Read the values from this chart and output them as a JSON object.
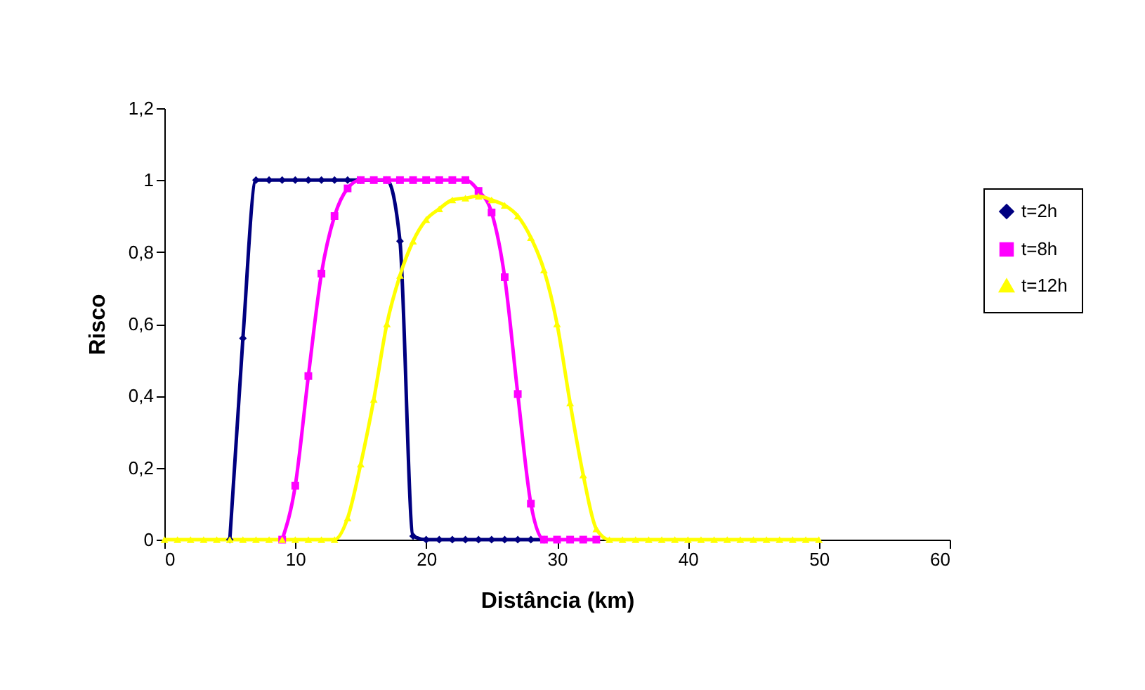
{
  "chart_data": {
    "type": "line",
    "xlabel": "Distância (km)",
    "ylabel": "Risco",
    "x": [
      0,
      1,
      2,
      3,
      4,
      5,
      6,
      7,
      8,
      9,
      10,
      11,
      12,
      13,
      14,
      15,
      16,
      17,
      18,
      19,
      20,
      21,
      22,
      23,
      24,
      25,
      26,
      27,
      28,
      29,
      30,
      31,
      32,
      33,
      34,
      35,
      36,
      37,
      38,
      39,
      40,
      41,
      42,
      43,
      44,
      45,
      46,
      47,
      48,
      49,
      50
    ],
    "series": [
      {
        "name": "t=2h",
        "color": "#000080",
        "marker": "diamond",
        "values": [
          null,
          null,
          null,
          null,
          null,
          0,
          0.56,
          1,
          1,
          1,
          1,
          1,
          1,
          1,
          1,
          1,
          null,
          1,
          0.83,
          0.01,
          0,
          0,
          0,
          0,
          0,
          0,
          0,
          0,
          0,
          0,
          null,
          null,
          null,
          null,
          null,
          null,
          null,
          null,
          null,
          null,
          null,
          null,
          null,
          null,
          null,
          null,
          null,
          null,
          null,
          null,
          null
        ]
      },
      {
        "name": "t=8h",
        "color": "#ff00ff",
        "marker": "square",
        "values": [
          null,
          null,
          null,
          null,
          null,
          null,
          null,
          null,
          null,
          0,
          0.15,
          0.455,
          0.74,
          0.9,
          0.977,
          1,
          1,
          1,
          1,
          1,
          1,
          1,
          1,
          1,
          0.97,
          0.91,
          0.73,
          0.405,
          0.1,
          0,
          0,
          0,
          0,
          0,
          null,
          null,
          null,
          null,
          null,
          null,
          null,
          null,
          null,
          null,
          null,
          null,
          null,
          null,
          null,
          null,
          null
        ]
      },
      {
        "name": "t=12h",
        "color": "#ffff00",
        "marker": "triangle",
        "values": [
          0,
          0,
          0,
          0,
          0,
          0,
          0,
          0,
          0,
          0,
          0,
          0,
          0,
          0,
          0.06,
          0.21,
          0.39,
          0.6,
          0.735,
          0.83,
          0.89,
          0.92,
          0.945,
          0.95,
          0.955,
          0.945,
          0.93,
          0.9,
          0.84,
          0.75,
          0.6,
          0.38,
          0.18,
          0.03,
          0,
          0,
          0,
          0,
          0,
          0,
          0,
          0,
          0,
          0,
          0,
          0,
          0,
          0,
          0,
          0,
          0
        ]
      }
    ],
    "xlim": [
      0,
      60
    ],
    "xticks": [
      0,
      10,
      20,
      30,
      40,
      50,
      60
    ],
    "ylim": [
      0,
      1.2
    ],
    "yticks": [
      0,
      {
        "value": 0.2,
        "label": "0,2"
      },
      {
        "value": 0.4,
        "label": "0,4"
      },
      {
        "value": 0.6,
        "label": "0,6"
      },
      {
        "value": 0.8,
        "label": "0,8"
      },
      1,
      {
        "value": 1.2,
        "label": "1,2"
      }
    ],
    "grid": false,
    "legend": "right",
    "line_style": "solid"
  }
}
